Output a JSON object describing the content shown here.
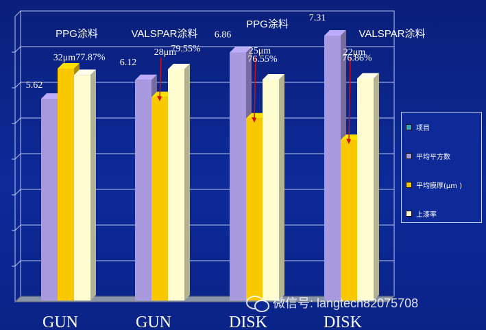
{
  "chart_data": {
    "type": "bar",
    "categories": [
      "GUN",
      "GUN",
      "DISK",
      "DISK"
    ],
    "group_labels": [
      "PPG涂料",
      "VALSPAR涂料",
      "PPG涂料",
      "VALSPAR涂料"
    ],
    "series": [
      {
        "name": "项目",
        "values": [
          0,
          0,
          0,
          0
        ],
        "color": "#2fa7c6"
      },
      {
        "name": "平均平方数",
        "values": [
          5.62,
          6.12,
          6.86,
          7.31
        ],
        "labels": [
          "5.62",
          "6.12",
          "6.86",
          "7.31"
        ],
        "color": "#a99ae0"
      },
      {
        "name": "平均膜厚(μm )",
        "values": [
          32,
          28,
          25,
          22
        ],
        "labels": [
          "32μm",
          "28μm",
          "25μm",
          "22μm"
        ],
        "color": "#f9c800"
      },
      {
        "name": "上漆率",
        "values": [
          77.87,
          79.55,
          76.55,
          76.86
        ],
        "labels": [
          "77.87%",
          "79.55%",
          "76.55%",
          "76.86%"
        ],
        "color": "#fffed0"
      }
    ],
    "grid": true,
    "legend_placement": "right"
  },
  "watermark": "微信号: langtech82075708"
}
